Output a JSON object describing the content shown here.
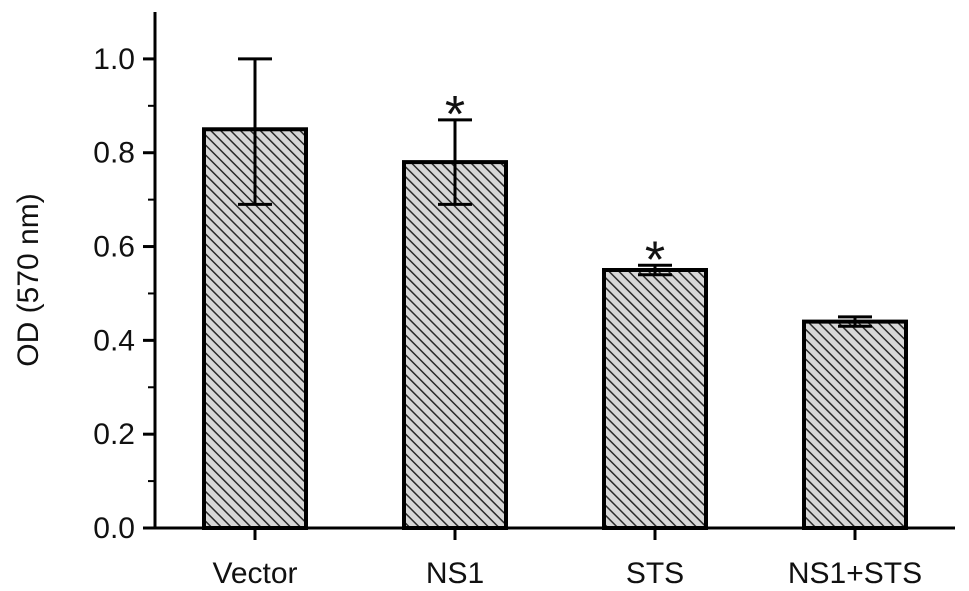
{
  "chart_data": {
    "type": "bar",
    "title": "",
    "xlabel": "",
    "ylabel": "OD (570 nm)",
    "ylim": [
      0.0,
      1.1
    ],
    "yticks": [
      "0.0",
      "0.2",
      "0.4",
      "0.6",
      "0.8",
      "1.0"
    ],
    "categories": [
      "Vector",
      "NS1",
      "STS",
      "NS1+STS"
    ],
    "values": [
      0.85,
      0.78,
      0.55,
      0.44
    ],
    "error_low": [
      0.69,
      0.69,
      0.54,
      0.43
    ],
    "error_high": [
      1.0,
      0.87,
      0.56,
      0.45
    ],
    "significance": [
      "",
      "*",
      "*",
      ""
    ],
    "grid": false,
    "legend": "none",
    "bar_fill": "hatched",
    "colors": {
      "bar_face": "#d7d7d7",
      "hatch": "#2a2a2a",
      "stroke": "#000000"
    }
  }
}
